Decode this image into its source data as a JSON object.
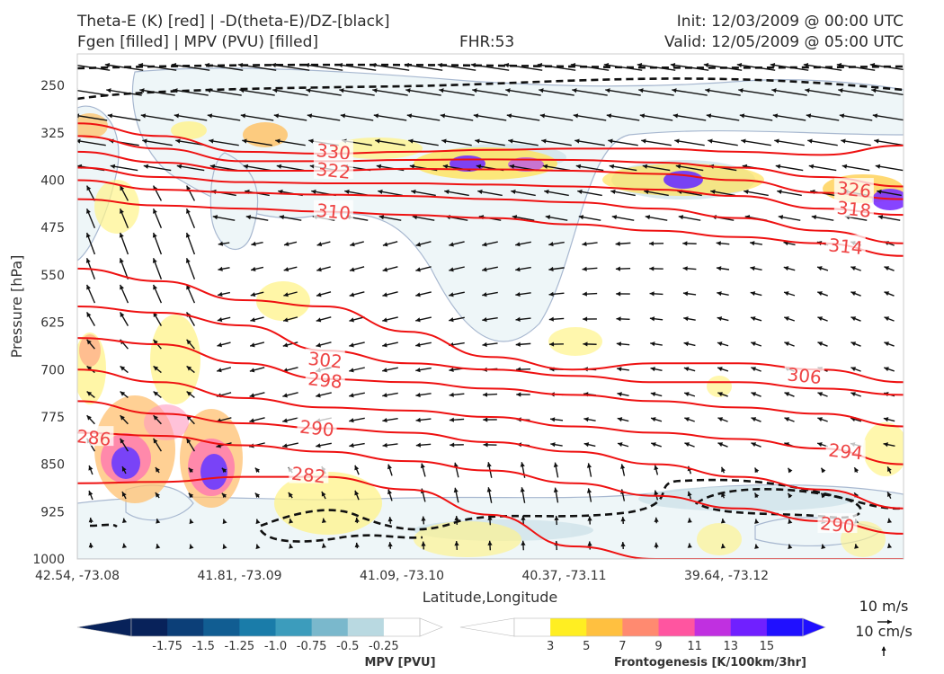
{
  "header": {
    "line1_left": "Theta-E (K) [red] | -D(theta-E)/DZ-[black]",
    "line2_left": "Fgen [filled] | MPV (PVU) [filled]",
    "line2_center": "FHR:53",
    "line1_right": "Init: 12/03/2009 @ 00:00 UTC",
    "line2_right": "Valid: 12/05/2009 @ 05:00 UTC"
  },
  "chart_data": {
    "type": "cross-section",
    "xlabel": "Latitude,Longitude",
    "ylabel": "Pressure [hPa]",
    "x_ticks": [
      "42.54, -73.08",
      "41.81, -73.09",
      "41.09, -73.10",
      "40.37, -73.11",
      "39.64, -73.12"
    ],
    "y_ticks": [
      250,
      325,
      400,
      475,
      550,
      625,
      700,
      775,
      850,
      925,
      1000
    ],
    "ylim": [
      1000,
      200
    ],
    "y_inverted": true,
    "grid": false,
    "theta_e_contour_labels": [
      {
        "value": "330",
        "x_frac": 0.31,
        "p": 355
      },
      {
        "value": "322",
        "x_frac": 0.31,
        "p": 385
      },
      {
        "value": "310",
        "x_frac": 0.31,
        "p": 450
      },
      {
        "value": "302",
        "x_frac": 0.3,
        "p": 685
      },
      {
        "value": "298",
        "x_frac": 0.3,
        "p": 717
      },
      {
        "value": "290",
        "x_frac": 0.29,
        "p": 793
      },
      {
        "value": "286",
        "x_frac": 0.02,
        "p": 808
      },
      {
        "value": "282",
        "x_frac": 0.28,
        "p": 867
      },
      {
        "value": "326",
        "x_frac": 0.94,
        "p": 415
      },
      {
        "value": "318",
        "x_frac": 0.94,
        "p": 446
      },
      {
        "value": "314",
        "x_frac": 0.93,
        "p": 505
      },
      {
        "value": "306",
        "x_frac": 0.88,
        "p": 710
      },
      {
        "value": "294",
        "x_frac": 0.93,
        "p": 830
      },
      {
        "value": "290",
        "x_frac": 0.92,
        "p": 946
      }
    ],
    "theta_e_contours": [
      {
        "value": 330,
        "p": [
          310,
          330,
          355,
          358,
          355,
          352,
          350,
          350,
          355,
          360,
          345
        ]
      },
      {
        "value": 326,
        "p": [
          330,
          350,
          370,
          370,
          368,
          367,
          368,
          372,
          380,
          395,
          410
        ]
      },
      {
        "value": 322,
        "p": [
          355,
          372,
          385,
          385,
          382,
          383,
          385,
          390,
          400,
          420,
          430
        ]
      },
      {
        "value": 318,
        "p": [
          380,
          395,
          403,
          405,
          405,
          407,
          410,
          415,
          425,
          445,
          455
        ]
      },
      {
        "value": 314,
        "p": [
          400,
          415,
          420,
          423,
          425,
          430,
          435,
          445,
          460,
          480,
          500
        ]
      },
      {
        "value": 310,
        "p": [
          430,
          440,
          445,
          450,
          455,
          460,
          470,
          480,
          490,
          500,
          520
        ]
      },
      {
        "value": 306,
        "p": [
          540,
          560,
          590,
          600,
          640,
          680,
          700,
          690,
          690,
          700,
          720
        ]
      },
      {
        "value": 302,
        "p": [
          600,
          610,
          630,
          670,
          690,
          700,
          710,
          720,
          720,
          730,
          740
        ]
      },
      {
        "value": 298,
        "p": [
          650,
          660,
          690,
          715,
          720,
          730,
          740,
          750,
          760,
          770,
          790
        ]
      },
      {
        "value": 294,
        "p": [
          700,
          720,
          745,
          760,
          765,
          775,
          790,
          800,
          810,
          825,
          850
        ]
      },
      {
        "value": 290,
        "p": [
          750,
          770,
          785,
          793,
          800,
          815,
          830,
          850,
          870,
          890,
          920
        ]
      },
      {
        "value": 286,
        "p": [
          800,
          805,
          820,
          830,
          845,
          860,
          880,
          900,
          920,
          940,
          960
        ]
      },
      {
        "value": 282,
        "p": [
          880,
          878,
          870,
          870,
          890,
          930,
          980,
          1000,
          1000,
          1000,
          1000
        ]
      }
    ],
    "mpv_colorbar": {
      "title": "MPV [PVU]",
      "ticks": [
        "-1.75",
        "-1.5",
        "-1.25",
        "-1.0",
        "-0.75",
        "-0.5",
        "-0.25"
      ],
      "colors": [
        "#08225a",
        "#0c3f78",
        "#115d92",
        "#1a7ca9",
        "#3c9cbc",
        "#7ab8cc",
        "#b9d9e1",
        "#ffffff"
      ]
    },
    "fgen_colorbar": {
      "title": "Frontogenesis [K/100km/3hr]",
      "ticks": [
        "3",
        "5",
        "7",
        "9",
        "11",
        "13",
        "15"
      ],
      "colors": [
        "#ffffff",
        "#ffee22",
        "#ffc040",
        "#ff8a70",
        "#ff55a0",
        "#c030e0",
        "#7020ff",
        "#2010ff"
      ]
    },
    "wind_key": {
      "horizontal_label": "10 m/s",
      "vertical_label": "10 cm/s"
    }
  }
}
